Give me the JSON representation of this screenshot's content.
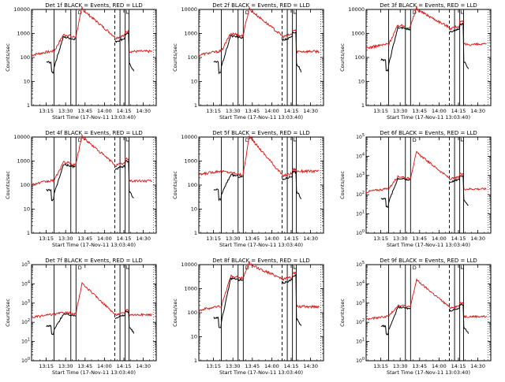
{
  "chart_data": [
    {
      "type": "line",
      "title": "Det 1f BLACK = Events, RED = LLD",
      "xlabel": "Start Time (17-Nov-11 13:03:40)",
      "ylabel": "Counts/sec",
      "xticks": [
        "13:15",
        "13:30",
        "13:45",
        "14:00",
        "14:15",
        "14:30"
      ],
      "yscale": "log",
      "ylim": [
        1,
        10000
      ],
      "ytick_labels": [
        "1",
        "10",
        "100",
        "1000",
        "10000"
      ],
      "marker_label": "D",
      "red_peak": "saturated",
      "black_peak": 800,
      "red_low": 180,
      "black_low": 40
    },
    {
      "type": "line",
      "title": "Det 2f BLACK = Events, RED = LLD",
      "xlabel": "Start Time (17-Nov-11 13:03:40)",
      "ylabel": "Counts/sec",
      "xticks": [
        "13:15",
        "13:30",
        "13:45",
        "14:00",
        "14:15",
        "14:30"
      ],
      "yscale": "log",
      "ylim": [
        1,
        10000
      ],
      "ytick_labels": [
        "1",
        "10",
        "100",
        "1000",
        "10000"
      ],
      "marker_label": "D",
      "red_peak": "saturated",
      "black_peak": 900,
      "red_low": 180,
      "black_low": 40
    },
    {
      "type": "line",
      "title": "Det 3f BLACK = Events, RED = LLD",
      "xlabel": "Start Time (17-Nov-11 13:03:40)",
      "ylabel": "Counts/sec",
      "xticks": [
        "13:15",
        "13:30",
        "13:45",
        "14:00",
        "14:15",
        "14:30"
      ],
      "yscale": "log",
      "ylim": [
        1,
        10000
      ],
      "ytick_labels": [
        "1",
        "10",
        "100",
        "1000",
        "10000"
      ],
      "marker_label": "D",
      "red_peak": "saturated",
      "black_peak": 2000,
      "red_low": 350,
      "black_low": 50
    },
    {
      "type": "line",
      "title": "Det 4f BLACK = Events, RED = LLD",
      "xlabel": "Start Time (17-Nov-11 13:03:40)",
      "ylabel": "Counts/sec",
      "xticks": [
        "13:15",
        "13:30",
        "13:45",
        "14:00",
        "14:15",
        "14:30"
      ],
      "yscale": "log",
      "ylim": [
        1,
        10000
      ],
      "ytick_labels": [
        "1",
        "10",
        "100",
        "1000",
        "10000"
      ],
      "marker_label": "D",
      "red_peak": "saturated",
      "black_peak": 800,
      "red_low": 150,
      "black_low": 40
    },
    {
      "type": "line",
      "title": "Det 5f BLACK = Events, RED = LLD",
      "xlabel": "Start Time (17-Nov-11 13:03:40)",
      "ylabel": "Counts/sec",
      "xticks": [
        "13:15",
        "13:30",
        "13:45",
        "14:00",
        "14:15",
        "14:30"
      ],
      "yscale": "log",
      "ylim": [
        1,
        10000
      ],
      "ytick_labels": [
        "1",
        "10",
        "100",
        "1000",
        "10000"
      ],
      "marker_label": "D",
      "red_peak": "saturated",
      "black_peak": 300,
      "red_low": 380,
      "black_low": 40
    },
    {
      "type": "line",
      "title": "Det 6f BLACK = Events, RED = LLD",
      "xlabel": "Start Time (17-Nov-11 13:03:40)",
      "ylabel": "Counts/sec",
      "xticks": [
        "13:15",
        "13:30",
        "13:45",
        "14:00",
        "14:15",
        "14:30"
      ],
      "yscale": "log",
      "ylim": [
        1,
        100000
      ],
      "ytick_labels": [
        "10^0",
        "10^1",
        "10^2",
        "10^3",
        "10^4",
        "10^5"
      ],
      "marker_label": "D",
      "red_peak": 15000,
      "black_peak": 800,
      "red_low": 200,
      "black_low": 40
    },
    {
      "type": "line",
      "title": "Det 7f BLACK = Events, RED = LLD",
      "xlabel": "Start Time (17-Nov-11 13:03:40)",
      "ylabel": "Counts/sec",
      "xticks": [
        "13:15",
        "13:30",
        "13:45",
        "14:00",
        "14:15",
        "14:30"
      ],
      "yscale": "log",
      "ylim": [
        1,
        100000
      ],
      "ytick_labels": [
        "10^0",
        "10^1",
        "10^2",
        "10^3",
        "10^4",
        "10^5"
      ],
      "marker_label": "D",
      "red_peak": 10000,
      "black_peak": 300,
      "red_low": 250,
      "black_low": 40
    },
    {
      "type": "line",
      "title": "Det 8f BLACK = Events, RED = LLD",
      "xlabel": "Start Time (17-Nov-11 13:03:40)",
      "ylabel": "Counts/sec",
      "xticks": [
        "13:15",
        "13:30",
        "13:45",
        "14:00",
        "14:15",
        "14:30"
      ],
      "yscale": "log",
      "ylim": [
        1,
        10000
      ],
      "ytick_labels": [
        "1",
        "10",
        "100",
        "1000",
        "10000"
      ],
      "marker_label": "D",
      "red_peak": "saturated",
      "black_peak": 3000,
      "red_low": 180,
      "black_low": 40
    },
    {
      "type": "line",
      "title": "Det 9f BLACK = Events, RED = LLD",
      "xlabel": "Start Time (17-Nov-11 13:03:40)",
      "ylabel": "Counts/sec",
      "xticks": [
        "13:15",
        "13:30",
        "13:45",
        "14:00",
        "14:15",
        "14:30"
      ],
      "yscale": "log",
      "ylim": [
        1,
        100000
      ],
      "ytick_labels": [
        "10^0",
        "10^1",
        "10^2",
        "10^3",
        "10^4",
        "10^5"
      ],
      "marker_label": "D",
      "red_peak": 15000,
      "black_peak": 700,
      "red_low": 200,
      "black_low": 40
    }
  ],
  "colors": {
    "events": "#000000",
    "lld": "#dd1111",
    "background": "#ffffff",
    "axis": "#000000"
  }
}
